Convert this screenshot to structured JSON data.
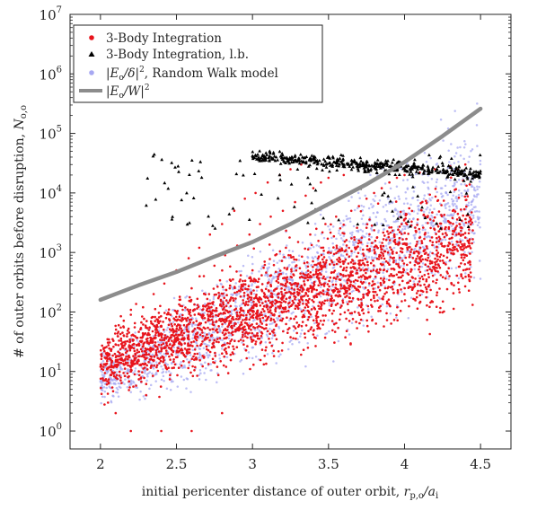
{
  "chart_data": {
    "type": "scatter",
    "xlabel": "initial pericenter distance of outer orbit, r_{p,o}/a_i",
    "ylabel": "# of outer orbits before disruption, N_{o,o}",
    "xlim": [
      1.8,
      4.7
    ],
    "ylim": [
      0.5,
      10000000
    ],
    "y_scale": "log",
    "x_ticks": [
      2,
      2.5,
      3,
      3.5,
      4,
      4.5
    ],
    "x_tick_labels": [
      "2",
      "2.5",
      "3",
      "3.5",
      "4",
      "4.5"
    ],
    "y_ticks": [
      1,
      10,
      100,
      1000,
      10000,
      100000,
      1000000,
      10000000
    ],
    "y_tick_labels": [
      {
        "base": "10",
        "exp": "0"
      },
      {
        "base": "10",
        "exp": "1"
      },
      {
        "base": "10",
        "exp": "2"
      },
      {
        "base": "10",
        "exp": "3"
      },
      {
        "base": "10",
        "exp": "4"
      },
      {
        "base": "10",
        "exp": "5"
      },
      {
        "base": "10",
        "exp": "6"
      },
      {
        "base": "10",
        "exp": "7"
      }
    ],
    "grid": false,
    "legend_position": "top-left",
    "series": [
      {
        "name": "3-Body Integration",
        "marker": "circle",
        "color": "#e8141c",
        "points_note": "sampled",
        "x_range": [
          2.0,
          4.45
        ],
        "points": [
          [
            2.02,
            12
          ],
          [
            2.05,
            20
          ],
          [
            2.08,
            35
          ],
          [
            2.1,
            8
          ],
          [
            2.12,
            60
          ],
          [
            2.15,
            25
          ],
          [
            2.18,
            14
          ],
          [
            2.2,
            90
          ],
          [
            2.22,
            40
          ],
          [
            2.25,
            18
          ],
          [
            2.28,
            120
          ],
          [
            2.3,
            55
          ],
          [
            2.32,
            30
          ],
          [
            2.35,
            200
          ],
          [
            2.38,
            70
          ],
          [
            2.4,
            22
          ],
          [
            2.42,
            300
          ],
          [
            2.45,
            110
          ],
          [
            2.48,
            45
          ],
          [
            2.5,
            500
          ],
          [
            2.52,
            160
          ],
          [
            2.55,
            60
          ],
          [
            2.58,
            800
          ],
          [
            2.6,
            250
          ],
          [
            2.62,
            90
          ],
          [
            2.65,
            1200
          ],
          [
            2.68,
            400
          ],
          [
            2.7,
            130
          ],
          [
            2.72,
            2000
          ],
          [
            2.75,
            600
          ],
          [
            2.78,
            180
          ],
          [
            2.8,
            3000
          ],
          [
            2.82,
            900
          ],
          [
            2.85,
            250
          ],
          [
            2.88,
            5000
          ],
          [
            2.9,
            1300
          ],
          [
            2.92,
            350
          ],
          [
            2.95,
            8000
          ],
          [
            2.98,
            2000
          ],
          [
            3.0,
            500
          ],
          [
            3.02,
            10000
          ],
          [
            3.05,
            3000
          ],
          [
            3.08,
            700
          ],
          [
            3.1,
            15000
          ],
          [
            3.12,
            4000
          ],
          [
            3.15,
            900
          ],
          [
            3.18,
            20000
          ],
          [
            3.2,
            5000
          ],
          [
            3.22,
            1200
          ],
          [
            3.25,
            25000
          ],
          [
            3.28,
            7000
          ],
          [
            3.3,
            1500
          ],
          [
            3.32,
            30000
          ],
          [
            3.35,
            9000
          ],
          [
            3.38,
            2000
          ],
          [
            3.4,
            12000
          ],
          [
            3.42,
            2500
          ],
          [
            3.45,
            15000
          ],
          [
            3.48,
            3000
          ],
          [
            3.5,
            18000
          ],
          [
            3.55,
            4000
          ],
          [
            3.6,
            20000
          ],
          [
            3.65,
            5000
          ],
          [
            3.7,
            6000
          ],
          [
            3.75,
            8000
          ],
          [
            3.8,
            10000
          ],
          [
            3.85,
            12000
          ],
          [
            3.9,
            15000
          ],
          [
            3.95,
            18000
          ],
          [
            4.0,
            20000
          ],
          [
            4.1,
            22000
          ],
          [
            4.2,
            25000
          ],
          [
            4.3,
            28000
          ],
          [
            4.4,
            30000
          ],
          [
            2.05,
            3
          ],
          [
            2.1,
            2
          ],
          [
            2.2,
            1
          ],
          [
            2.4,
            1
          ],
          [
            2.6,
            1
          ],
          [
            2.3,
            4
          ],
          [
            2.8,
            2
          ],
          [
            3.3,
            300
          ],
          [
            4.15,
            500
          ]
        ]
      },
      {
        "name": "3-Body Integration, l.b.",
        "marker": "triangle",
        "color": "#000000",
        "x_range": [
          2.3,
          4.5
        ],
        "points_note": "lower bounds clustered near 2e4–5e4"
      },
      {
        "name": "|E_o/δ|^2, Random Walk model",
        "marker": "circle",
        "color": "#a7a8f2",
        "x_range": [
          2.0,
          4.5
        ],
        "points_note": "broad cloud, roughly 3 to 4e6"
      },
      {
        "name": "|E_o/W|^2",
        "marker": "line",
        "color": "#8c8c8c",
        "x": [
          2.0,
          2.25,
          2.5,
          2.75,
          3.0,
          3.25,
          3.5,
          3.75,
          4.0,
          4.25,
          4.5
        ],
        "y": [
          160,
          280,
          470,
          850,
          1500,
          3000,
          6500,
          14000,
          33000,
          90000,
          260000
        ]
      }
    ],
    "legend": [
      {
        "text": "3-Body Integration",
        "marker": "circle",
        "color": "#e8141c"
      },
      {
        "text": "3-Body Integration, l.b.",
        "marker": "triangle",
        "color": "#000000"
      },
      {
        "text": "|E_o/δ|^2, Random Walk model",
        "marker": "circle",
        "color": "#a7a8f2"
      },
      {
        "text": "|E_o/W|^2",
        "marker": "line",
        "color": "#8c8c8c"
      }
    ]
  }
}
